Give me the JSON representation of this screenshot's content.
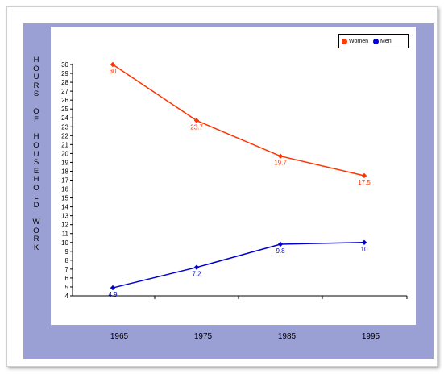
{
  "chart_data": {
    "type": "line",
    "categories": [
      "1965",
      "1975",
      "1985",
      "1995"
    ],
    "series": [
      {
        "name": "Women",
        "values": [
          30,
          23.7,
          19.7,
          17.5
        ],
        "labels": [
          "30",
          "23.7",
          "19.7",
          "17.5"
        ],
        "color": "#ff3300"
      },
      {
        "name": "Men",
        "values": [
          4.9,
          7.2,
          9.8,
          10
        ],
        "labels": [
          "4.9",
          "7.2",
          "9.8",
          "10"
        ],
        "color": "#0000cc"
      }
    ],
    "ylabel": "HOURS OF HOUSEHOLD WORK",
    "ylim": [
      4,
      30
    ],
    "yticks": [
      4,
      5,
      6,
      7,
      8,
      9,
      10,
      11,
      12,
      13,
      14,
      15,
      16,
      17,
      18,
      19,
      20,
      21,
      22,
      23,
      24,
      25,
      26,
      27,
      28,
      29,
      30
    ],
    "legend": "top-right",
    "grid": false,
    "background_color": "#9a9fd4"
  }
}
